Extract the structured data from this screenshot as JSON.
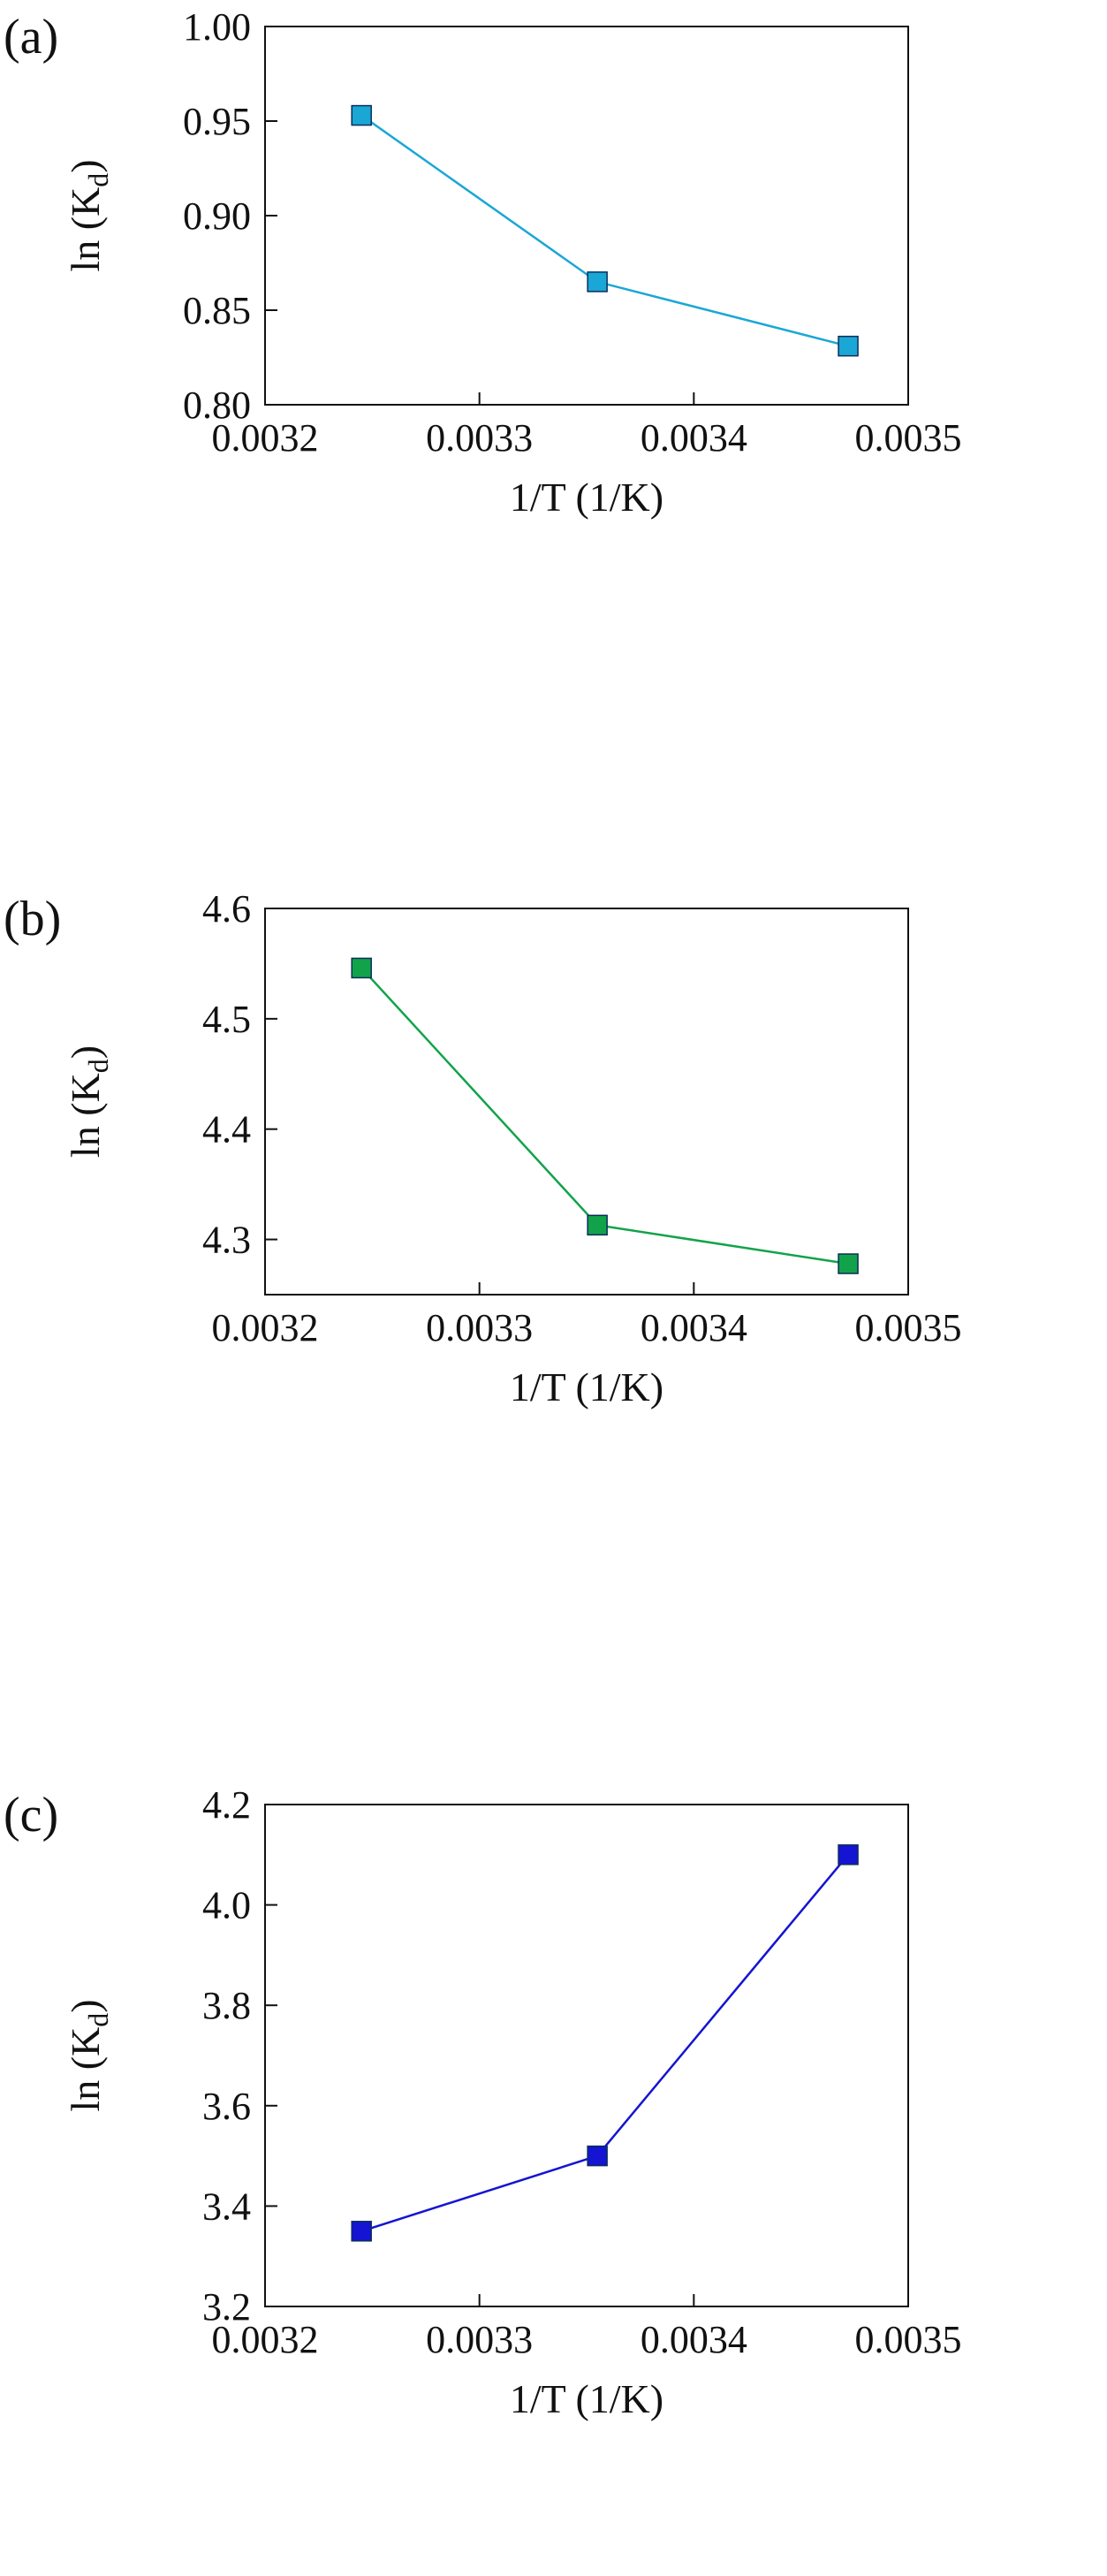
{
  "chart_data": [
    {
      "panel_label": "(a)",
      "type": "line",
      "xlabel": "1/T (1/K)",
      "ylabel_main": "ln (K",
      "ylabel_sub": "d",
      "ylabel_end": ")",
      "xlim": [
        0.0032,
        0.0035
      ],
      "ylim": [
        0.8,
        1.0
      ],
      "xticks": [
        0.0032,
        0.0033,
        0.0034,
        0.0035
      ],
      "xtick_labels": [
        "0.0032",
        "0.0033",
        "0.0034",
        "0.0035"
      ],
      "yticks": [
        0.8,
        0.85,
        0.9,
        0.95,
        1.0
      ],
      "ytick_labels": [
        "0.80",
        "0.85",
        "0.90",
        "0.95",
        "1.00"
      ],
      "color": "#1aa7d6",
      "x": [
        0.003245,
        0.003355,
        0.003472
      ],
      "y": [
        0.953,
        0.865,
        0.831
      ]
    },
    {
      "panel_label": "(b)",
      "type": "line",
      "xlabel": "1/T (1/K)",
      "ylabel_main": "ln (K",
      "ylabel_sub": "d",
      "ylabel_end": ")",
      "xlim": [
        0.0032,
        0.0035
      ],
      "ylim": [
        4.25,
        4.6
      ],
      "xticks": [
        0.0032,
        0.0033,
        0.0034,
        0.0035
      ],
      "xtick_labels": [
        "0.0032",
        "0.0033",
        "0.0034",
        "0.0035"
      ],
      "yticks": [
        4.3,
        4.4,
        4.5,
        4.6
      ],
      "ytick_labels": [
        "4.3",
        "4.4",
        "4.5",
        "4.6"
      ],
      "color": "#12a34a",
      "x": [
        0.003245,
        0.003355,
        0.003472
      ],
      "y": [
        4.546,
        4.313,
        4.278
      ]
    },
    {
      "panel_label": "(c)",
      "type": "line",
      "xlabel": "1/T (1/K)",
      "ylabel_main": "ln (K",
      "ylabel_sub": "d",
      "ylabel_end": ")",
      "xlim": [
        0.0032,
        0.0035
      ],
      "ylim": [
        3.2,
        4.2
      ],
      "xticks": [
        0.0032,
        0.0033,
        0.0034,
        0.0035
      ],
      "xtick_labels": [
        "0.0032",
        "0.0033",
        "0.0034",
        "0.0035"
      ],
      "yticks": [
        3.2,
        3.4,
        3.6,
        3.8,
        4.0,
        4.2
      ],
      "ytick_labels": [
        "3.2",
        "3.4",
        "3.6",
        "3.8",
        "4.0",
        "4.2"
      ],
      "color": "#1414d2",
      "x": [
        0.003245,
        0.003355,
        0.003472
      ],
      "y": [
        3.35,
        3.5,
        4.1
      ]
    }
  ]
}
